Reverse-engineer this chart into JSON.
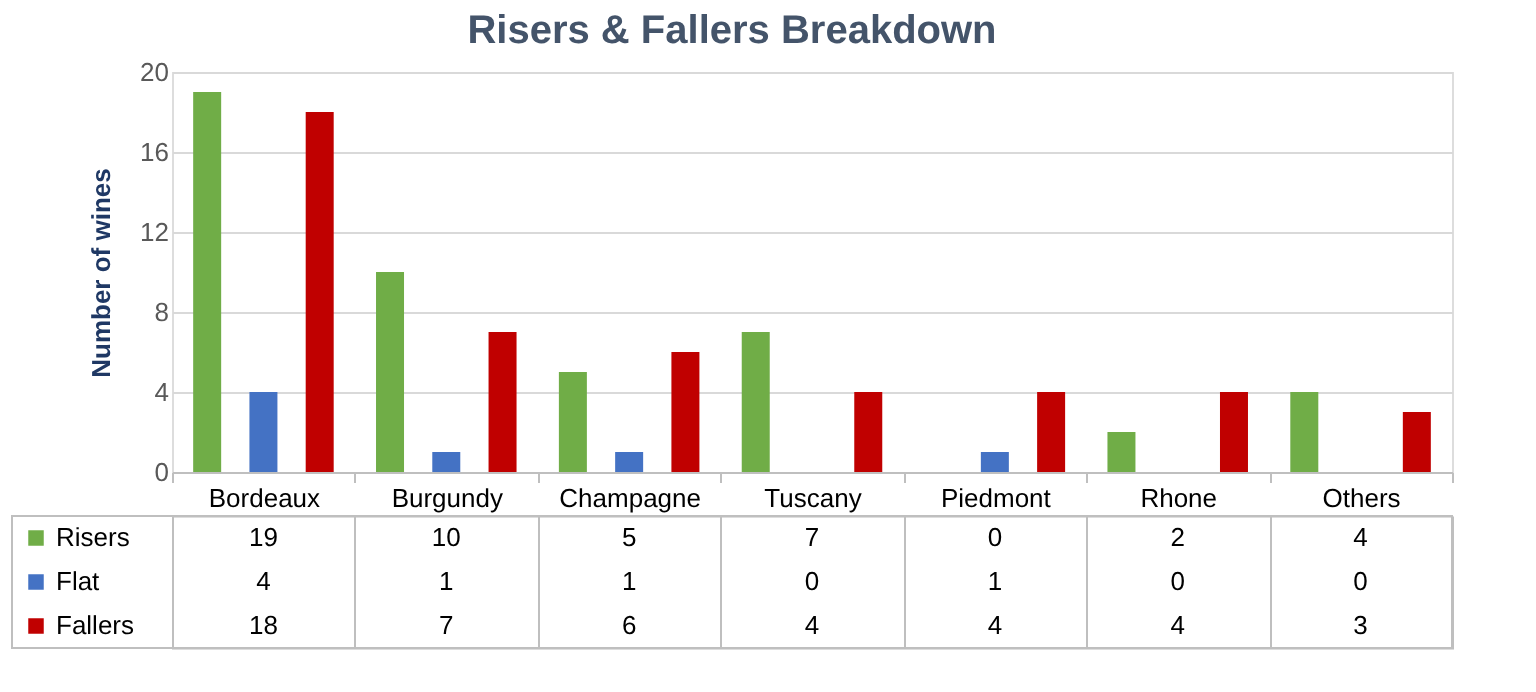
{
  "chart_data": {
    "type": "bar",
    "title": "Risers & Fallers Breakdown",
    "ylabel": "Number of wines",
    "categories": [
      "Bordeaux",
      "Burgundy",
      "Champagne",
      "Tuscany",
      "Piedmont",
      "Rhone",
      "Others"
    ],
    "series": [
      {
        "name": "Risers",
        "color": "#70ad47",
        "values": [
          19,
          10,
          5,
          7,
          0,
          2,
          4
        ]
      },
      {
        "name": "Flat",
        "color": "#4472c4",
        "values": [
          4,
          1,
          1,
          0,
          1,
          0,
          0
        ]
      },
      {
        "name": "Fallers",
        "color": "#c00000",
        "values": [
          18,
          7,
          6,
          4,
          4,
          4,
          3
        ]
      }
    ],
    "ylim": [
      0,
      20
    ],
    "yticks": [
      0,
      4,
      8,
      12,
      16,
      20
    ],
    "grid": "y",
    "legend": "bottom",
    "data_labels": true
  }
}
